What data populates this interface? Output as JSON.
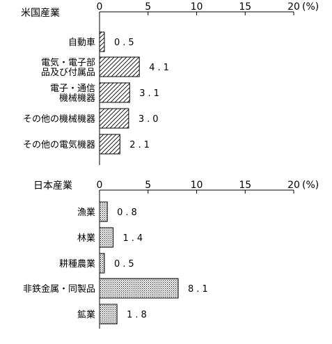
{
  "chart_data": [
    {
      "type": "bar",
      "orientation": "horizontal",
      "title": "米国産業",
      "unit_label": "(%)",
      "xlim": [
        0,
        20
      ],
      "ticks": [
        "0",
        "5",
        "10",
        "15",
        "20"
      ],
      "categories": [
        [
          "自動車"
        ],
        [
          "電気・電子部",
          "品及び付属品"
        ],
        [
          "電子・通信",
          "機械機器"
        ],
        [
          "その他の機械機器"
        ],
        [
          "その他の電気機器"
        ]
      ],
      "values": [
        0.5,
        4.1,
        3.1,
        3.0,
        2.1
      ],
      "value_labels": [
        "0.5",
        "4.1",
        "3.1",
        "3.0",
        "2.1"
      ],
      "fill": "diagonal-hatch"
    },
    {
      "type": "bar",
      "orientation": "horizontal",
      "title": "日本産業",
      "unit_label": "(%)",
      "xlim": [
        0,
        20
      ],
      "ticks": [
        "0",
        "5",
        "10",
        "15",
        "20"
      ],
      "categories": [
        [
          "漁業"
        ],
        [
          "林業"
        ],
        [
          "耕種農業"
        ],
        [
          "非鉄金属・同製品"
        ],
        [
          "鉱業"
        ]
      ],
      "values": [
        0.8,
        1.4,
        0.5,
        8.1,
        1.8
      ],
      "value_labels": [
        "0.8",
        "1.4",
        "0.5",
        "8.1",
        "1.8"
      ],
      "fill": "dotted"
    }
  ]
}
